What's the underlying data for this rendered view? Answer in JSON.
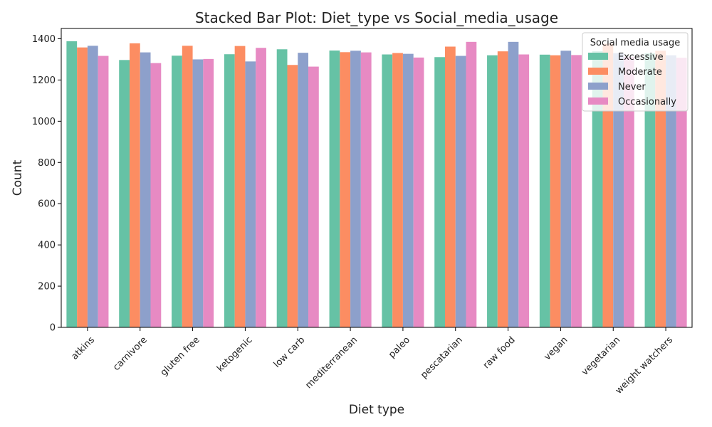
{
  "chart_data": {
    "type": "bar",
    "title": "Stacked Bar Plot: Diet_type vs Social_media_usage",
    "xlabel": "Diet type",
    "ylabel": "Count",
    "ylim": [
      0,
      1450
    ],
    "yticks": [
      0,
      200,
      400,
      600,
      800,
      1000,
      1200,
      1400
    ],
    "grid": false,
    "legend": {
      "title": "Social media usage",
      "placement": "top-right"
    },
    "categories": [
      "atkins",
      "carnivore",
      "gluten free",
      "ketogenic",
      "low carb",
      "mediterranean",
      "paleo",
      "pescatarian",
      "raw food",
      "vegan",
      "vegetarian",
      "weight watchers"
    ],
    "series": [
      {
        "name": "Excessive",
        "color": "#66c2a5",
        "values": [
          1388,
          1297,
          1318,
          1325,
          1349,
          1343,
          1324,
          1311,
          1320,
          1323,
          1340,
          1330
        ]
      },
      {
        "name": "Moderate",
        "color": "#fc8d62",
        "values": [
          1358,
          1378,
          1366,
          1365,
          1273,
          1335,
          1331,
          1362,
          1339,
          1320,
          1376,
          1342
        ]
      },
      {
        "name": "Never",
        "color": "#8da0cb",
        "values": [
          1366,
          1334,
          1300,
          1290,
          1332,
          1342,
          1327,
          1317,
          1385,
          1342,
          1330,
          1320
        ]
      },
      {
        "name": "Occasionally",
        "color": "#e78ac3",
        "values": [
          1317,
          1282,
          1302,
          1356,
          1265,
          1334,
          1309,
          1385,
          1324,
          1321,
          1312,
          1308
        ]
      }
    ]
  }
}
